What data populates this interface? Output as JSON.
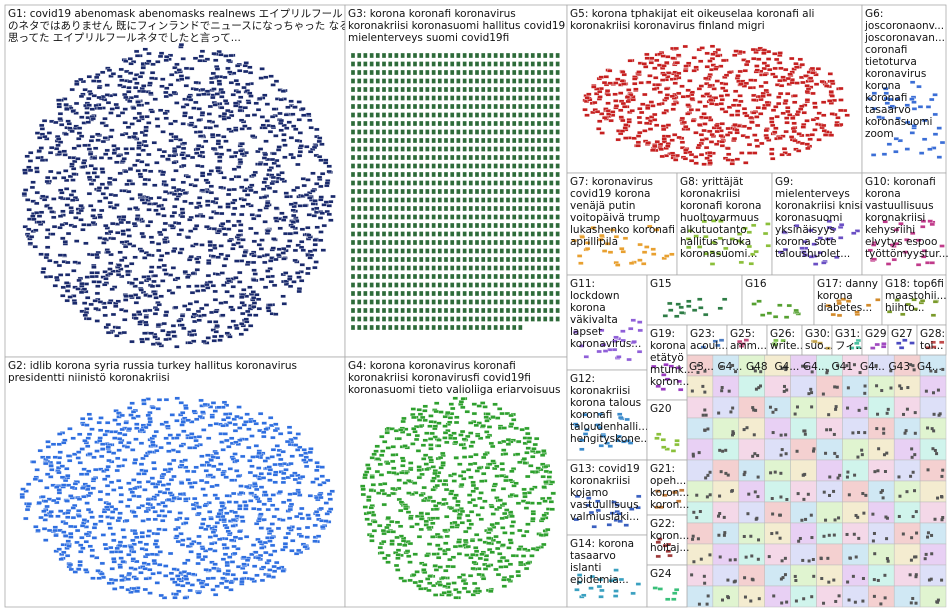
{
  "groups": [
    {
      "lines": [
        "G1: covid19 abenomask abenomasks realnews エイプリルフール",
        "のネタではありません 既にフィンランドでニュースになっちゃった なるだろうと",
        "思ってた エイプリルフールネタでしたと言って..."
      ]
    },
    {
      "lines": [
        "G3: korona koronafi koronavirus",
        "koronakriisi koronasuomi hallitus covid19",
        "mielenterveys suomi covid19fi"
      ]
    },
    {
      "lines": [
        "G5: korona tphakijat eit oikeuselaa koronafi ali",
        "koronakriisi koronavirus finland migri"
      ]
    },
    {
      "lines": [
        "G6:",
        "joscoronaonv...",
        "joscoronavan...",
        "coronafi",
        "tietoturva",
        "koronavirus",
        "korona",
        "koronafi",
        "tasaarvo",
        "koronasuomi",
        "zoom"
      ]
    },
    {
      "lines": [
        "G7: koronavirus",
        "covid19 korona",
        "venäjä putin",
        "voitopäivä trump",
        "lukashenko koronafi",
        "aprillipila"
      ]
    },
    {
      "lines": [
        "G8: yrittäjät",
        "koronakriisi",
        "koronafi korona",
        "huoltovarmuus",
        "alkutuotanto",
        "hallitus ruoka",
        "koronasuomi..."
      ]
    },
    {
      "lines": [
        "G9:",
        "mielenterveys",
        "koronakriisi knisi",
        "koronasuomi",
        "yksinäisyys",
        "korona sote",
        "taloushuolet..."
      ]
    },
    {
      "lines": [
        "G10: koronafi",
        "korona",
        "vastuullisuus",
        "koronakriisi",
        "kehysriihi",
        "elvytys espoo",
        "työttömyystur..."
      ]
    },
    {
      "lines": [
        "G2: idlib korona syria russia turkey hallitus koronavirus",
        "presidentti niinistö koronakriisi"
      ]
    },
    {
      "lines": [
        "G4: korona koronavirus koronafi",
        "koronakriisi koronavirusfi covid19fi",
        "koronasuomi tieto valioliiga eriarvoisuus"
      ]
    },
    {
      "lines": [
        "G11:",
        "lockdown",
        "korona",
        "väkivalta",
        "lapset",
        "koronavirus..."
      ]
    },
    {
      "lines": [
        "G15"
      ]
    },
    {
      "lines": [
        "G16"
      ]
    },
    {
      "lines": [
        "G17: danny",
        "korona",
        "diabetes..."
      ]
    },
    {
      "lines": [
        "G18: top6fi",
        "maastohii...",
        "hiihto..."
      ]
    },
    {
      "lines": [
        "G12:",
        "koronakriisi",
        "korona talous",
        "koronafi",
        "taloudenhalli...",
        "hengityskone..."
      ]
    },
    {
      "lines": [
        "G19:",
        "korona",
        "etätyö",
        "mtunk...",
        "koron..."
      ]
    },
    {
      "lines": [
        "G20"
      ]
    },
    {
      "lines": [
        "G13: covid19",
        "koronakriisi",
        "kojamo",
        "vastuullisuus",
        "valmiuslaki..."
      ]
    },
    {
      "lines": [
        "G21:",
        "opeh...",
        "koron...",
        "koron..."
      ]
    },
    {
      "lines": [
        "G14: korona",
        "tasaarvo",
        "islanti",
        "epidemia..."
      ]
    },
    {
      "lines": [
        "G22:",
        "koron...",
        "hoitaj..."
      ]
    },
    {
      "lines": [
        "G24"
      ]
    },
    {
      "lines": [
        "G23:",
        "acoul..."
      ]
    },
    {
      "lines": [
        "G25:",
        "amm..."
      ]
    },
    {
      "lines": [
        "G26:",
        "write..."
      ]
    },
    {
      "lines": [
        "G30:",
        "suo..."
      ]
    },
    {
      "lines": [
        "G31:",
        "フィ..."
      ]
    },
    {
      "lines": [
        "G29"
      ]
    },
    {
      "lines": [
        "G27"
      ]
    },
    {
      "lines": [
        "G28:",
        "toi..."
      ]
    }
  ],
  "minor_groups": [
    "G3...",
    "G4...",
    "G48",
    "G4...",
    "G4...",
    "G41",
    "G4...",
    "G43",
    "G4..."
  ]
}
